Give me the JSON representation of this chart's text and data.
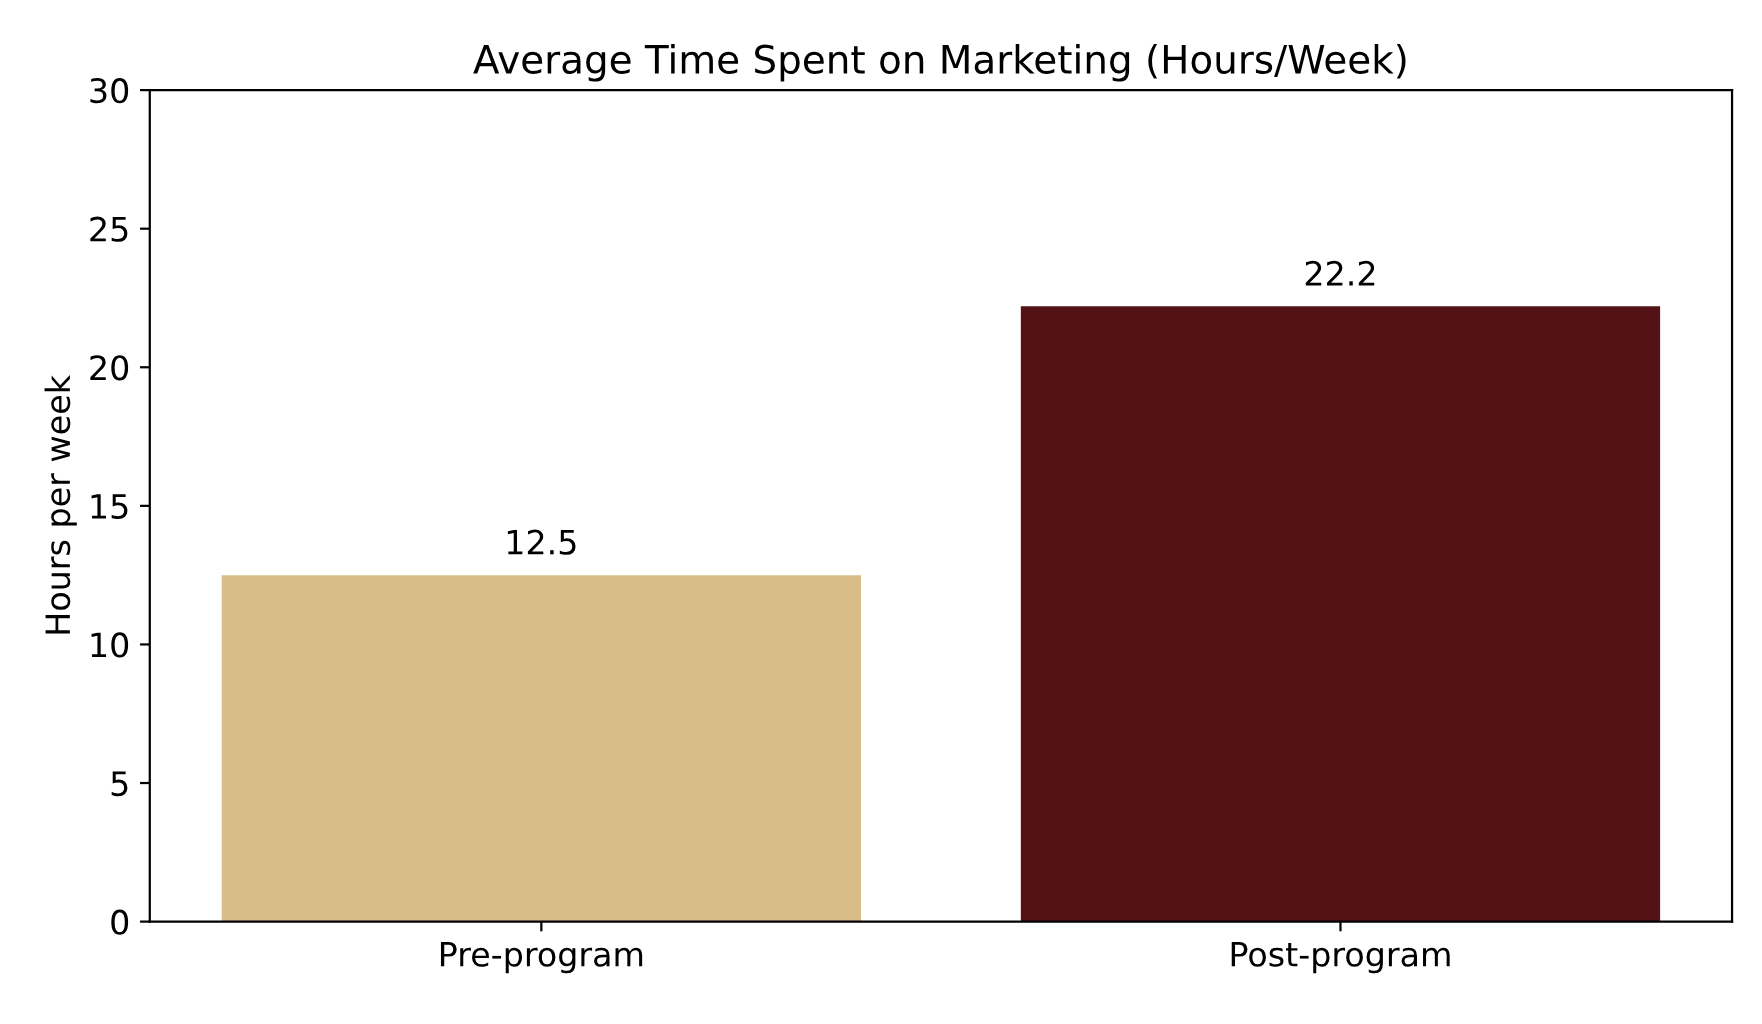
{
  "chart_data": {
    "type": "bar",
    "title": "Average Time Spent on Marketing (Hours/Week)",
    "ylabel": "Hours per week",
    "categories": [
      "Pre-program",
      "Post-program"
    ],
    "values": [
      12.5,
      22.2
    ],
    "colors": [
      "#d8bd88",
      "#521216"
    ],
    "ylim": [
      0,
      30
    ],
    "yticks": [
      0,
      5,
      10,
      15,
      20,
      25,
      30
    ],
    "data_labels": true,
    "grid": false,
    "legend": false
  }
}
